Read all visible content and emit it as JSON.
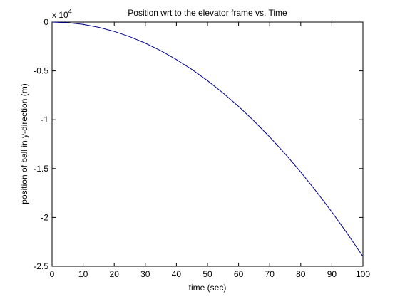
{
  "chart_data": {
    "type": "line",
    "title": "Position wrt to the elevator frame vs. Time",
    "xlabel": "time (sec)",
    "ylabel": "position of ball in y-direction (m)",
    "xlim": [
      0,
      100
    ],
    "ylim": [
      -2.5,
      0
    ],
    "y_exponent_label": "x 10",
    "y_exponent_power": "4",
    "x_ticks": [
      "0",
      "10",
      "20",
      "30",
      "40",
      "50",
      "60",
      "70",
      "80",
      "90",
      "100"
    ],
    "y_ticks": [
      "0",
      "-0.5",
      "-1",
      "-1.5",
      "-2",
      "-2.5"
    ],
    "grid": false,
    "line_color": "#00008b",
    "series": [
      {
        "x": [
          0,
          5,
          10,
          15,
          20,
          25,
          30,
          35,
          40,
          45,
          50,
          55,
          60,
          65,
          70,
          75,
          80,
          85,
          90,
          95,
          100
        ],
        "values": [
          0,
          -0.006,
          -0.024,
          -0.054,
          -0.096,
          -0.15,
          -0.216,
          -0.294,
          -0.384,
          -0.486,
          -0.6,
          -0.726,
          -0.864,
          -1.014,
          -1.176,
          -1.35,
          -1.536,
          -1.734,
          -1.944,
          -2.166,
          -2.4
        ]
      }
    ]
  }
}
